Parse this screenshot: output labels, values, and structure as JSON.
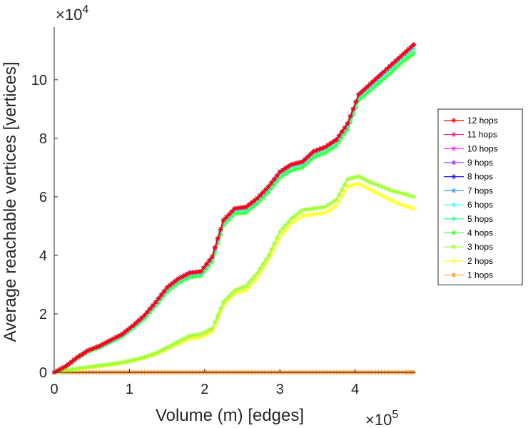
{
  "chart_data": {
    "type": "line",
    "xlabel": "Volume (m) [edges]",
    "ylabel": "Average reachable vertices [vertices]",
    "x_multiplier": {
      "base": "×10",
      "exp": "5"
    },
    "y_multiplier": {
      "base": "×10",
      "exp": "4"
    },
    "xlim": [
      0,
      480000
    ],
    "ylim": [
      0,
      118000
    ],
    "x_ticks": [
      0,
      100000,
      200000,
      300000,
      400000
    ],
    "x_tick_labels": [
      "0",
      "1",
      "2",
      "3",
      "4"
    ],
    "y_ticks": [
      0,
      20000,
      40000,
      60000,
      80000,
      100000
    ],
    "y_tick_labels": [
      "0",
      "2",
      "4",
      "6",
      "8",
      "10"
    ],
    "legend_position": "outside-right",
    "x": [
      0,
      15000,
      30000,
      45000,
      60000,
      75000,
      90000,
      105000,
      120000,
      135000,
      150000,
      165000,
      180000,
      195000,
      210000,
      225000,
      240000,
      255000,
      270000,
      285000,
      300000,
      315000,
      330000,
      345000,
      360000,
      375000,
      390000,
      405000,
      420000,
      435000,
      450000,
      465000,
      478000
    ],
    "series": [
      {
        "name": "12 hops",
        "color": "#ff0000",
        "values": [
          0,
          2000,
          5000,
          7500,
          9000,
          11000,
          13000,
          16000,
          19500,
          24000,
          29000,
          32000,
          34000,
          34500,
          39500,
          52000,
          56000,
          56500,
          59500,
          63500,
          68500,
          71000,
          72000,
          75500,
          77000,
          79500,
          85000,
          95000,
          98500,
          102000,
          105500,
          109000,
          112000
        ]
      },
      {
        "name": "11 hops",
        "color": "#ff1e9a",
        "values": [
          0,
          2000,
          5000,
          7500,
          9000,
          11000,
          13000,
          16000,
          19500,
          24000,
          29000,
          32000,
          34000,
          34500,
          39500,
          52000,
          56000,
          56500,
          59500,
          63500,
          68500,
          71000,
          72000,
          75500,
          77000,
          79500,
          85000,
          95000,
          98500,
          102000,
          105500,
          109000,
          112000
        ]
      },
      {
        "name": "10 hops",
        "color": "#ff32ff",
        "values": [
          0,
          2000,
          5000,
          7500,
          9000,
          11000,
          13000,
          16000,
          19500,
          24000,
          29000,
          32000,
          34000,
          34500,
          39500,
          52000,
          56000,
          56500,
          59500,
          63500,
          68500,
          71000,
          72000,
          75500,
          77000,
          79500,
          85000,
          95000,
          98500,
          102000,
          105500,
          109000,
          112000
        ]
      },
      {
        "name": "9 hops",
        "color": "#9632ff",
        "values": [
          0,
          2000,
          5000,
          7500,
          9000,
          11000,
          13000,
          16000,
          19500,
          24000,
          29000,
          32000,
          34000,
          34500,
          39500,
          52000,
          56000,
          56500,
          59500,
          63500,
          68500,
          71000,
          72000,
          75500,
          77000,
          79500,
          85000,
          95000,
          98500,
          102000,
          105500,
          109000,
          112000
        ]
      },
      {
        "name": "8 hops",
        "color": "#1e1eff",
        "values": [
          0,
          2000,
          5000,
          7500,
          9000,
          11000,
          13000,
          16000,
          19500,
          24000,
          29000,
          32000,
          34000,
          34500,
          39500,
          52000,
          56000,
          56500,
          59500,
          63500,
          68500,
          71000,
          72000,
          75500,
          77000,
          79500,
          85000,
          95000,
          98500,
          102000,
          105500,
          109000,
          112000
        ]
      },
      {
        "name": "7 hops",
        "color": "#32a0ff",
        "values": [
          0,
          2000,
          5000,
          7500,
          9000,
          11000,
          13000,
          16000,
          19500,
          24000,
          29000,
          32000,
          34000,
          34500,
          39500,
          52000,
          56000,
          56500,
          59500,
          63500,
          68500,
          71000,
          72000,
          75500,
          77000,
          79500,
          85000,
          95000,
          98500,
          102000,
          105500,
          109000,
          112000
        ]
      },
      {
        "name": "6 hops",
        "color": "#32ffff",
        "values": [
          0,
          1900,
          4900,
          7400,
          8900,
          10800,
          12800,
          15800,
          19200,
          23700,
          28700,
          31700,
          33700,
          34200,
          39200,
          51700,
          55700,
          56200,
          59200,
          63200,
          68200,
          70700,
          71700,
          75200,
          76700,
          79200,
          84700,
          94700,
          98200,
          101700,
          105200,
          108700,
          111500
        ]
      },
      {
        "name": "5 hops",
        "color": "#32ffa0",
        "values": [
          0,
          1900,
          4800,
          7300,
          8800,
          10600,
          12600,
          15600,
          19000,
          23400,
          28300,
          31300,
          33300,
          33800,
          38800,
          51200,
          55200,
          55600,
          58700,
          62600,
          67600,
          70100,
          71100,
          74600,
          76100,
          78600,
          84000,
          94000,
          97400,
          100800,
          104300,
          107800,
          110500
        ]
      },
      {
        "name": "4 hops",
        "color": "#32ff32",
        "values": [
          0,
          1800,
          4600,
          7000,
          8500,
          10300,
          12200,
          15100,
          18400,
          22700,
          27500,
          30500,
          32500,
          33000,
          37800,
          50200,
          54200,
          54600,
          57700,
          61600,
          66500,
          69000,
          70000,
          73500,
          75000,
          77500,
          83000,
          93000,
          96300,
          99600,
          103000,
          106500,
          109000
        ]
      },
      {
        "name": "3 hops",
        "color": "#a0ff32",
        "values": [
          0,
          700,
          1300,
          1800,
          2300,
          2800,
          3400,
          4200,
          5200,
          6500,
          8500,
          10500,
          12500,
          13000,
          15000,
          24000,
          28000,
          29500,
          34000,
          40000,
          48000,
          52500,
          55500,
          56000,
          56500,
          59000,
          66000,
          67000,
          65000,
          63500,
          62000,
          61000,
          60000
        ]
      },
      {
        "name": "2 hops",
        "color": "#ffff32",
        "values": [
          0,
          600,
          1100,
          1600,
          2100,
          2600,
          3200,
          4000,
          5000,
          6200,
          8000,
          9800,
          11500,
          12000,
          14000,
          23000,
          27000,
          28000,
          32500,
          38500,
          46000,
          51000,
          53500,
          54000,
          54500,
          57000,
          63500,
          64500,
          62500,
          60500,
          58500,
          57000,
          56000
        ]
      },
      {
        "name": "1 hops",
        "color": "#ff9632",
        "values": [
          10,
          10,
          10,
          10,
          10,
          10,
          10,
          10,
          10,
          10,
          10,
          10,
          10,
          10,
          10,
          10,
          10,
          10,
          10,
          10,
          10,
          10,
          10,
          10,
          10,
          10,
          10,
          10,
          10,
          10,
          10,
          10,
          10
        ]
      }
    ]
  }
}
